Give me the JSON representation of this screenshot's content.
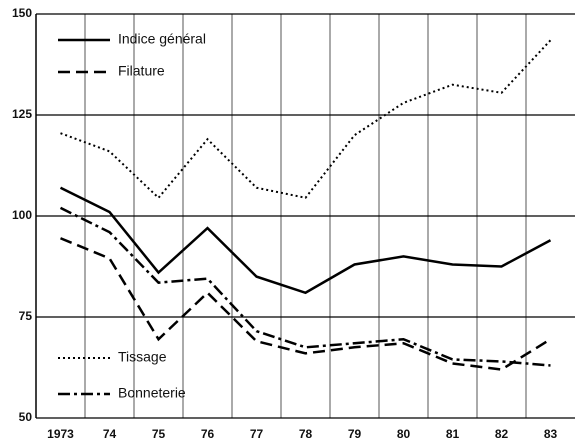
{
  "chart_data": {
    "type": "line",
    "categories": [
      "1973",
      "74",
      "75",
      "76",
      "77",
      "78",
      "79",
      "80",
      "81",
      "82",
      "83"
    ],
    "series": [
      {
        "name": "Indice général",
        "color": "#000000",
        "style": "solid",
        "values": [
          107,
          101,
          86,
          97,
          85,
          81,
          88,
          90,
          88,
          87.5,
          94
        ]
      },
      {
        "name": "Filature",
        "color": "#000000",
        "style": "dashed",
        "values": [
          94.5,
          89.5,
          69.5,
          81,
          69,
          66,
          67.5,
          68.5,
          63.5,
          62,
          69.5
        ]
      },
      {
        "name": "Tissage",
        "color": "#000000",
        "style": "dotted",
        "values": [
          120.5,
          116,
          104.5,
          119,
          107,
          104.5,
          120,
          128,
          132.5,
          130.5,
          143.5
        ]
      },
      {
        "name": "Bonneterie",
        "color": "#000000",
        "style": "dashdot",
        "values": [
          102,
          96,
          83.5,
          84.5,
          71.5,
          67.5,
          68.5,
          69.5,
          64.5,
          64,
          63
        ]
      }
    ],
    "ylim": [
      50,
      150
    ],
    "yticks": [
      50,
      75,
      100,
      125,
      150
    ],
    "grid": true
  }
}
